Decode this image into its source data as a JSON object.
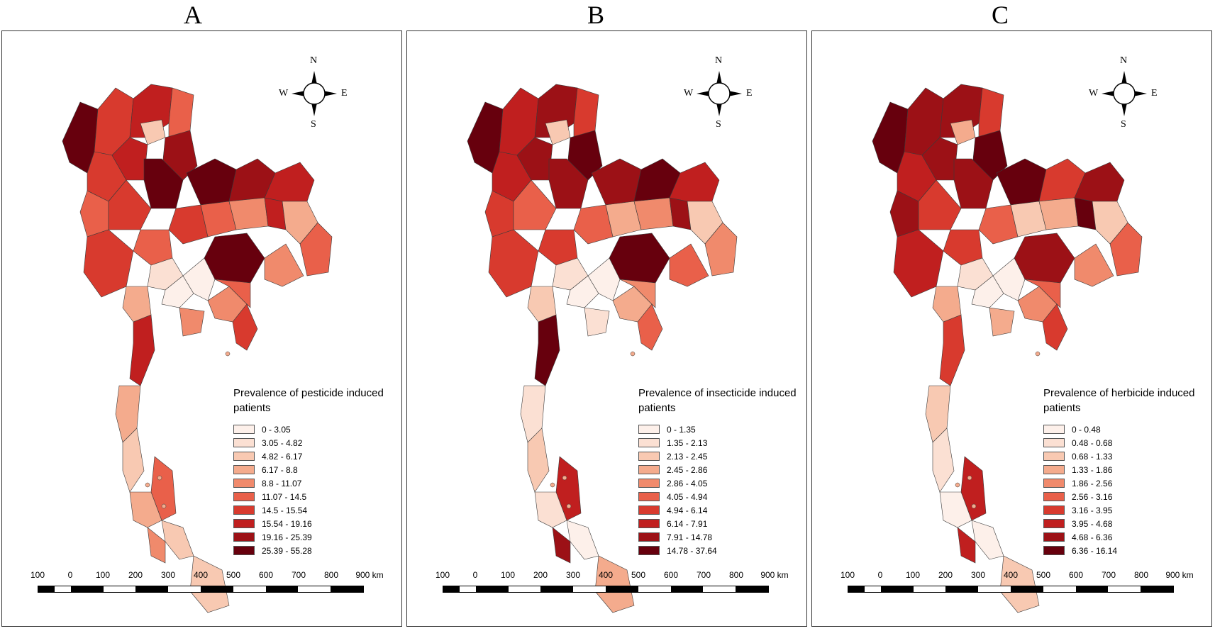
{
  "panels": [
    {
      "letter": "A",
      "legend_title": "Prevalence of pesticide induced patients",
      "classes": [
        "0 - 3.05",
        "3.05 - 4.82",
        "4.82 - 6.17",
        "6.17 - 8.8",
        "8.8 - 11.07",
        "11.07 - 14.5",
        "14.5 - 15.54",
        "15.54 - 19.16",
        "19.16 - 25.39",
        "25.39 - 55.28"
      ]
    },
    {
      "letter": "B",
      "legend_title": "Prevalence of insecticide induced patients",
      "classes": [
        "0 - 1.35",
        "1.35 - 2.13",
        "2.13 - 2.45",
        "2.45 - 2.86",
        "2.86 - 4.05",
        "4.05 - 4.94",
        "4.94 - 6.14",
        "6.14 - 7.91",
        "7.91 - 14.78",
        "14.78 - 37.64"
      ]
    },
    {
      "letter": "C",
      "legend_title": "Prevalence of herbicide induced patients",
      "classes": [
        "0 - 0.48",
        "0.48 - 0.68",
        "0.68 - 1.33",
        "1.33 - 1.86",
        "1.86 - 2.56",
        "2.56 - 3.16",
        "3.16 - 3.95",
        "3.95 - 4.68",
        "4.68 - 6.36",
        "6.36 - 16.14"
      ]
    }
  ],
  "palette": [
    "#fdf0ea",
    "#fbe0d3",
    "#f8c9b2",
    "#f4ab8d",
    "#f08a6c",
    "#e9604a",
    "#d83a2e",
    "#c01f1f",
    "#9c1116",
    "#67000d"
  ],
  "compass": {
    "n": "N",
    "s": "S",
    "e": "E",
    "w": "W"
  },
  "scale": {
    "ticks": [
      "100",
      "0",
      "100",
      "200",
      "300",
      "400",
      "500",
      "600",
      "700",
      "800",
      "900 km"
    ]
  },
  "region_classes": [
    [
      9,
      6,
      7,
      5,
      6,
      2,
      7,
      8,
      9,
      9,
      8,
      7,
      5,
      6,
      6,
      5,
      4,
      7,
      9,
      5,
      3,
      5,
      4,
      6,
      1,
      0,
      0,
      4,
      5,
      7,
      3,
      6,
      4,
      3,
      2,
      5,
      3,
      2,
      4,
      2
    ],
    [
      9,
      7,
      8,
      6,
      7,
      2,
      8,
      9,
      8,
      8,
      9,
      7,
      6,
      5,
      5,
      3,
      4,
      8,
      9,
      6,
      2,
      4,
      5,
      6,
      1,
      0,
      0,
      3,
      4,
      9,
      2,
      5,
      1,
      1,
      2,
      7,
      1,
      0,
      8,
      3
    ],
    [
      9,
      8,
      8,
      6,
      7,
      3,
      8,
      9,
      8,
      9,
      6,
      8,
      8,
      6,
      5,
      2,
      3,
      9,
      8,
      6,
      2,
      5,
      4,
      7,
      1,
      0,
      0,
      4,
      5,
      6,
      3,
      6,
      3,
      2,
      1,
      7,
      0,
      0,
      7,
      2
    ]
  ]
}
